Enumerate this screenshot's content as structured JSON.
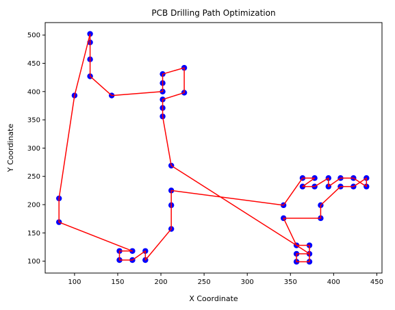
{
  "chart_data": {
    "type": "scatter",
    "title": "PCB Drilling Path Optimization",
    "xlabel": "X Coordinate",
    "ylabel": "Y Coordinate",
    "xlim": [
      66,
      456
    ],
    "ylim": [
      79,
      522
    ],
    "xticks": [
      100,
      150,
      200,
      250,
      300,
      350,
      400,
      450
    ],
    "yticks": [
      100,
      150,
      200,
      250,
      300,
      350,
      400,
      450,
      500
    ],
    "grid": false,
    "legend": "none",
    "colors": {
      "points": "#0000ff",
      "path": "#ff0000"
    },
    "points": [
      [
        82,
        211
      ],
      [
        82,
        169
      ],
      [
        100,
        393
      ],
      [
        118,
        502
      ],
      [
        118,
        487
      ],
      [
        118,
        457
      ],
      [
        118,
        427
      ],
      [
        143,
        393
      ],
      [
        152,
        118
      ],
      [
        152,
        102
      ],
      [
        167,
        118
      ],
      [
        167,
        102
      ],
      [
        182,
        118
      ],
      [
        182,
        102
      ],
      [
        202,
        431
      ],
      [
        202,
        415
      ],
      [
        202,
        400
      ],
      [
        202,
        386
      ],
      [
        202,
        371
      ],
      [
        202,
        356
      ],
      [
        227,
        442
      ],
      [
        227,
        398
      ],
      [
        212,
        269
      ],
      [
        212,
        225
      ],
      [
        212,
        199
      ],
      [
        212,
        157
      ],
      [
        342,
        199
      ],
      [
        342,
        176
      ],
      [
        357,
        128
      ],
      [
        357,
        113
      ],
      [
        357,
        99
      ],
      [
        372,
        128
      ],
      [
        372,
        113
      ],
      [
        372,
        99
      ],
      [
        364,
        247
      ],
      [
        364,
        232
      ],
      [
        378,
        247
      ],
      [
        378,
        232
      ],
      [
        385,
        199
      ],
      [
        385,
        176
      ],
      [
        394,
        247
      ],
      [
        394,
        232
      ],
      [
        408,
        247
      ],
      [
        408,
        232
      ],
      [
        423,
        247
      ],
      [
        423,
        232
      ],
      [
        438,
        247
      ],
      [
        438,
        232
      ]
    ],
    "path": [
      [
        118,
        502
      ],
      [
        118,
        487
      ],
      [
        118,
        457
      ],
      [
        118,
        427
      ],
      [
        143,
        393
      ],
      [
        202,
        400
      ],
      [
        202,
        415
      ],
      [
        202,
        431
      ],
      [
        227,
        442
      ],
      [
        227,
        398
      ],
      [
        202,
        386
      ],
      [
        202,
        371
      ],
      [
        202,
        356
      ],
      [
        212,
        269
      ],
      [
        357,
        128
      ],
      [
        372,
        128
      ],
      [
        372,
        113
      ],
      [
        357,
        113
      ],
      [
        357,
        99
      ],
      [
        372,
        99
      ],
      [
        372,
        113
      ],
      [
        357,
        128
      ],
      [
        342,
        176
      ],
      [
        385,
        176
      ],
      [
        385,
        199
      ],
      [
        408,
        232
      ],
      [
        423,
        232
      ],
      [
        438,
        247
      ],
      [
        438,
        232
      ],
      [
        423,
        247
      ],
      [
        408,
        247
      ],
      [
        394,
        232
      ],
      [
        394,
        247
      ],
      [
        378,
        232
      ],
      [
        364,
        232
      ],
      [
        378,
        247
      ],
      [
        364,
        247
      ],
      [
        342,
        199
      ],
      [
        212,
        225
      ],
      [
        212,
        199
      ],
      [
        212,
        157
      ],
      [
        182,
        102
      ],
      [
        182,
        118
      ],
      [
        167,
        102
      ],
      [
        152,
        102
      ],
      [
        152,
        118
      ],
      [
        167,
        118
      ],
      [
        82,
        169
      ],
      [
        82,
        211
      ],
      [
        100,
        393
      ],
      [
        118,
        502
      ]
    ]
  }
}
